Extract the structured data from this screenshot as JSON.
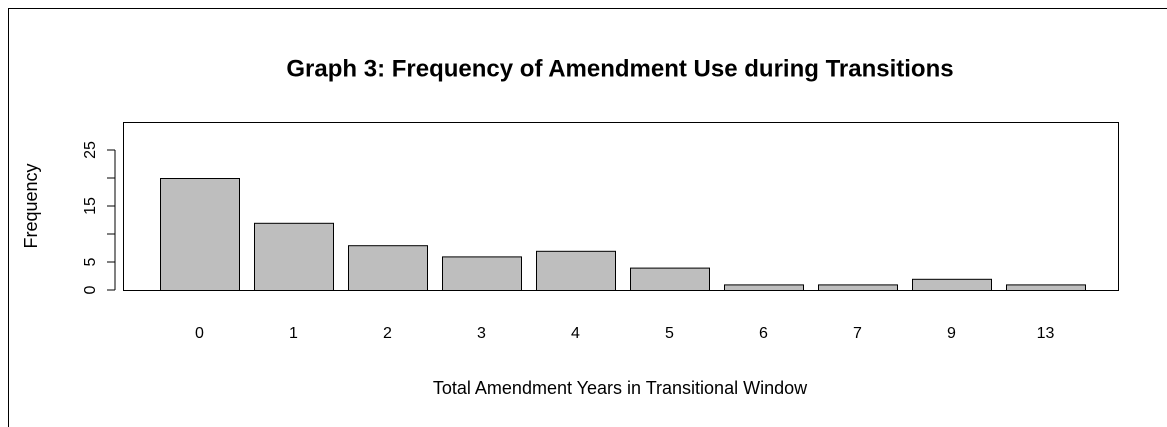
{
  "chart_data": {
    "type": "bar",
    "title": "Graph 3: Frequency of Amendment Use during Transitions",
    "x_label": "Total Amendment Years in Transitional Window",
    "y_label": "Frequency",
    "categories": [
      "0",
      "1",
      "2",
      "3",
      "4",
      "5",
      "6",
      "7",
      "9",
      "13"
    ],
    "values": [
      20,
      12,
      8,
      6,
      7,
      4,
      1,
      1,
      2,
      1
    ],
    "color": "#bebebe",
    "ylim": [
      0,
      30
    ],
    "yticks": [
      0,
      5,
      {
        "value": 10,
        "label": null
      },
      15,
      {
        "value": 20,
        "label": null
      },
      25
    ]
  }
}
